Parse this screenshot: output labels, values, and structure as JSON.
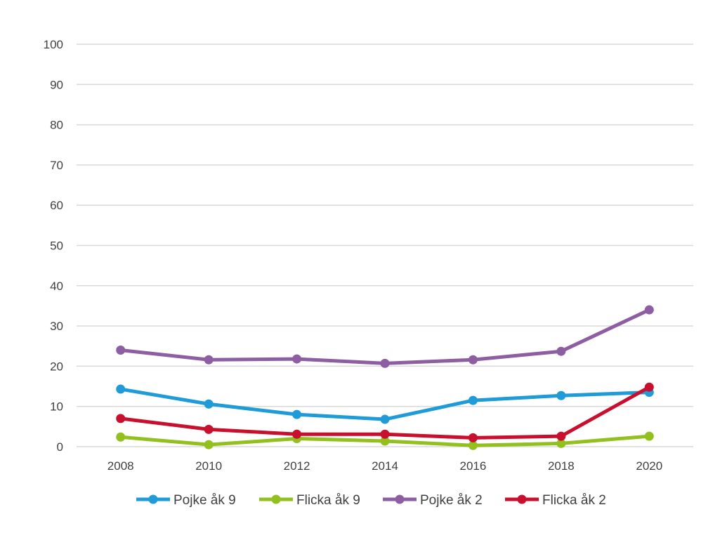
{
  "chart_data": {
    "type": "line",
    "title": "",
    "xlabel": "",
    "ylabel": "",
    "categories": [
      "2008",
      "2010",
      "2012",
      "2014",
      "2016",
      "2018",
      "2020"
    ],
    "ylim": [
      0,
      100
    ],
    "yticks": [
      0,
      10,
      20,
      30,
      40,
      50,
      60,
      70,
      80,
      90,
      100
    ],
    "grid": true,
    "legend": "bottom",
    "series": [
      {
        "name": "Pojke åk 9",
        "color": "#1f9bd7",
        "values": [
          14.3,
          10.6,
          8.0,
          6.8,
          11.5,
          12.7,
          13.5
        ]
      },
      {
        "name": "Flicka åk 9",
        "color": "#92c01f",
        "values": [
          2.4,
          0.5,
          2.0,
          1.4,
          0.3,
          0.8,
          2.6
        ]
      },
      {
        "name": "Pojke åk 2",
        "color": "#8e5ea2",
        "values": [
          24.0,
          21.6,
          21.8,
          20.7,
          21.6,
          23.7,
          34.0
        ]
      },
      {
        "name": "Flicka åk 2",
        "color": "#c8102e",
        "values": [
          7.0,
          4.3,
          3.1,
          3.1,
          2.2,
          2.6,
          14.8
        ]
      }
    ]
  }
}
